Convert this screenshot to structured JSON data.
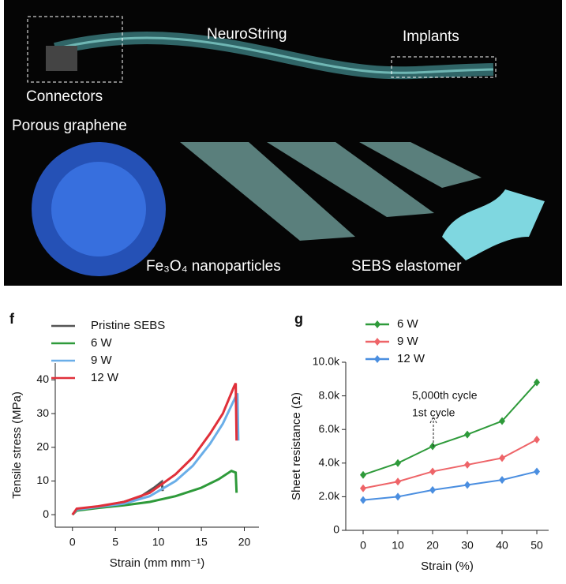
{
  "illustration": {
    "labels": [
      "NeuroString",
      "Implants",
      "Connectors",
      "Porous graphene",
      "Fe₃O₄ nanoparticles",
      "SEBS elastomer"
    ]
  },
  "chart_data": [
    {
      "type": "line",
      "label": "f",
      "xlabel": "Strain (mm mm⁻¹)",
      "ylabel": "Tensile stress (MPa)",
      "xlim": [
        -2,
        21.7
      ],
      "ylim": [
        -3.7,
        45
      ],
      "xticks": [
        0,
        5,
        10,
        15,
        20
      ],
      "yticks": [
        0,
        10,
        20,
        30,
        40
      ],
      "markers": false,
      "series": [
        {
          "name": "Pristine SEBS",
          "color": "#555555",
          "x": [
            0,
            0.5,
            2,
            4,
            6,
            8,
            9.5,
            10.4,
            10.5
          ],
          "values": [
            0,
            1.5,
            2,
            2.8,
            3.8,
            5.5,
            8,
            9.8,
            7
          ]
        },
        {
          "name": "6 W",
          "color": "#2e9a3a",
          "x": [
            0,
            0.5,
            3,
            6,
            9,
            12,
            15,
            17,
            18.5,
            19,
            19.1
          ],
          "values": [
            0,
            1.2,
            2,
            2.8,
            3.8,
            5.5,
            8,
            10.5,
            13,
            12.5,
            6.5
          ]
        },
        {
          "name": "9 W",
          "color": "#6aaee8",
          "x": [
            0,
            0.5,
            3,
            6,
            9,
            12,
            14,
            16,
            17.5,
            18.8,
            19.2,
            19.3
          ],
          "values": [
            0,
            1.5,
            2.3,
            3.3,
            5.5,
            10,
            14.5,
            21,
            27,
            34,
            36,
            22
          ]
        },
        {
          "name": "12 W",
          "color": "#e0303a",
          "x": [
            0,
            0.5,
            3,
            6,
            9,
            12,
            14,
            16,
            17.5,
            18.8,
            19,
            19.1
          ],
          "values": [
            0,
            1.8,
            2.5,
            3.8,
            6.5,
            12,
            17,
            24,
            30,
            38,
            39,
            22
          ]
        }
      ]
    },
    {
      "type": "line",
      "label": "g",
      "xlabel": "Strain (%)",
      "ylabel": "Sheet resistance (Ω)",
      "xlim": [
        -5,
        53.4
      ],
      "ylim": [
        0,
        10000
      ],
      "xticks": [
        0,
        10,
        20,
        30,
        40,
        50
      ],
      "yticks": [
        0,
        {
          "value": 2000,
          "label": "2.0k"
        },
        {
          "value": 4000,
          "label": "4.0k"
        },
        {
          "value": 6000,
          "label": "6.0k"
        },
        {
          "value": 8000,
          "label": "8.0k"
        },
        {
          "value": 10000,
          "label": "10.0k"
        }
      ],
      "markers": true,
      "annotations": [
        "5,000th cycle",
        "1st cycle"
      ],
      "series": [
        {
          "name": "6 W",
          "color": "#2e9a3a",
          "x": [
            0,
            10,
            20,
            30,
            40,
            50
          ],
          "values": [
            3300,
            4000,
            5000,
            5700,
            6500,
            8800
          ]
        },
        {
          "name": "9 W",
          "color": "#ee6468",
          "x": [
            0,
            10,
            20,
            30,
            40,
            50
          ],
          "values": [
            2500,
            2900,
            3500,
            3900,
            4300,
            5400
          ]
        },
        {
          "name": "12 W",
          "color": "#4a8ee0",
          "x": [
            0,
            10,
            20,
            30,
            40,
            50
          ],
          "values": [
            1800,
            2000,
            2400,
            2700,
            3000,
            3500
          ]
        }
      ]
    }
  ]
}
